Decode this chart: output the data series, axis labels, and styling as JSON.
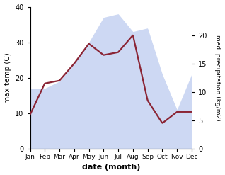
{
  "months": [
    "Jan",
    "Feb",
    "Mar",
    "Apr",
    "May",
    "Jun",
    "Jul",
    "Aug",
    "Sep",
    "Oct",
    "Nov",
    "Dec"
  ],
  "max_temp": [
    17,
    17,
    19,
    24,
    30,
    37,
    38,
    33,
    34,
    21,
    11,
    21
  ],
  "precipitation": [
    6,
    11.5,
    12,
    15,
    18.5,
    16.5,
    17,
    20,
    8.5,
    4.5,
    6.5,
    6.5
  ],
  "temp_color_fill": "#b8c8ee",
  "temp_fill_alpha": 0.7,
  "precip_color": "#8B2535",
  "precip_linewidth": 1.6,
  "xlabel": "date (month)",
  "ylabel_left": "max temp (C)",
  "ylabel_right": "med. precipitation (kg/m2)",
  "ylim_left": [
    0,
    40
  ],
  "ylim_right": [
    0,
    25
  ],
  "yticks_left": [
    0,
    10,
    20,
    30,
    40
  ],
  "yticks_right": [
    0,
    5,
    10,
    15,
    20
  ],
  "bg_color": "#ffffff"
}
